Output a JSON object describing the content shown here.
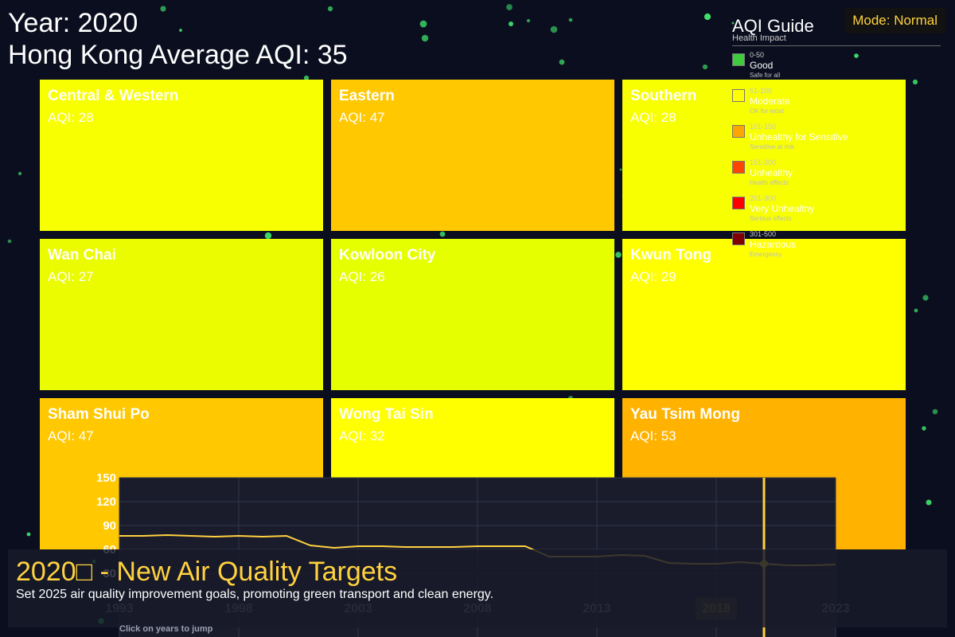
{
  "header": {
    "year_text": "Year: 2020",
    "average_text": "Hong Kong Average AQI: 35"
  },
  "mode": {
    "label": "Mode: Normal"
  },
  "legend": {
    "title": "AQI Guide",
    "subtitle": "Health Impact",
    "items": [
      {
        "range": "0-50",
        "label": "Good",
        "desc": "Safe for all",
        "color": "#3ecb3e"
      },
      {
        "range": "51-100",
        "label": "Moderate",
        "desc": "OK for most",
        "color": "#ffff00"
      },
      {
        "range": "101-150",
        "label": "Unhealthy for Sensitive",
        "desc": "Sensitive at risk",
        "color": "#ffa500"
      },
      {
        "range": "151-200",
        "label": "Unhealthy",
        "desc": "Health effects",
        "color": "#ff4500"
      },
      {
        "range": "201-300",
        "label": "Very Unhealthy",
        "desc": "Serious effects",
        "color": "#ff0000"
      },
      {
        "range": "301-500",
        "label": "Hazardous",
        "desc": "Emergency",
        "color": "#800000"
      }
    ]
  },
  "districts": [
    {
      "name": "Central & Western",
      "aqi_text": "AQI: 28",
      "color": "#f8ff00"
    },
    {
      "name": "Eastern",
      "aqi_text": "AQI: 47",
      "color": "#ffc800"
    },
    {
      "name": "Southern",
      "aqi_text": "AQI: 28",
      "color": "#f8ff00"
    },
    {
      "name": "Wan Chai",
      "aqi_text": "AQI: 27",
      "color": "#ebfb00"
    },
    {
      "name": "Kowloon City",
      "aqi_text": "AQI: 26",
      "color": "#e6ff00"
    },
    {
      "name": "Kwun Tong",
      "aqi_text": "AQI: 29",
      "color": "#ffff00"
    },
    {
      "name": "Sham Shui Po",
      "aqi_text": "AQI: 47",
      "color": "#ffc800"
    },
    {
      "name": "Wong Tai Sin",
      "aqi_text": "AQI: 32",
      "color": "#ffff00"
    },
    {
      "name": "Yau Tsim Mong",
      "aqi_text": "AQI: 53",
      "color": "#ffb300"
    }
  ],
  "chart_data": {
    "type": "line",
    "y_ticks": [
      "150",
      "120",
      "90",
      "60",
      "30"
    ],
    "ylim": [
      0,
      150
    ],
    "x_ticks": [
      "1993",
      "1998",
      "2003",
      "2008",
      "2013",
      "2018",
      "2023"
    ],
    "highlighted_tick": "2018",
    "selected_year": "2020",
    "grid": true,
    "x": [
      1993,
      1994,
      1995,
      1996,
      1997,
      1998,
      1999,
      2000,
      2001,
      2002,
      2003,
      2004,
      2005,
      2006,
      2007,
      2008,
      2009,
      2010,
      2011,
      2012,
      2013,
      2014,
      2015,
      2016,
      2017,
      2018,
      2019,
      2020,
      2021,
      2022,
      2023
    ],
    "values": [
      77,
      77,
      78,
      77,
      76,
      77,
      76,
      77,
      65,
      62,
      64,
      64,
      63,
      63,
      63,
      64,
      64,
      64,
      51,
      51,
      51,
      53,
      52,
      43,
      42,
      42,
      44,
      42,
      40,
      40,
      41
    ],
    "line_color": "#ffd23f"
  },
  "event": {
    "title": "2020□ - New Air Quality Targets",
    "desc": "Set 2025 air quality improvement goals, promoting green transport and clean energy."
  },
  "hint": "Click on years to jump",
  "colors": {
    "background": "#0b0e1f",
    "accent": "#ffd23f",
    "particle": "#3ee06a"
  }
}
